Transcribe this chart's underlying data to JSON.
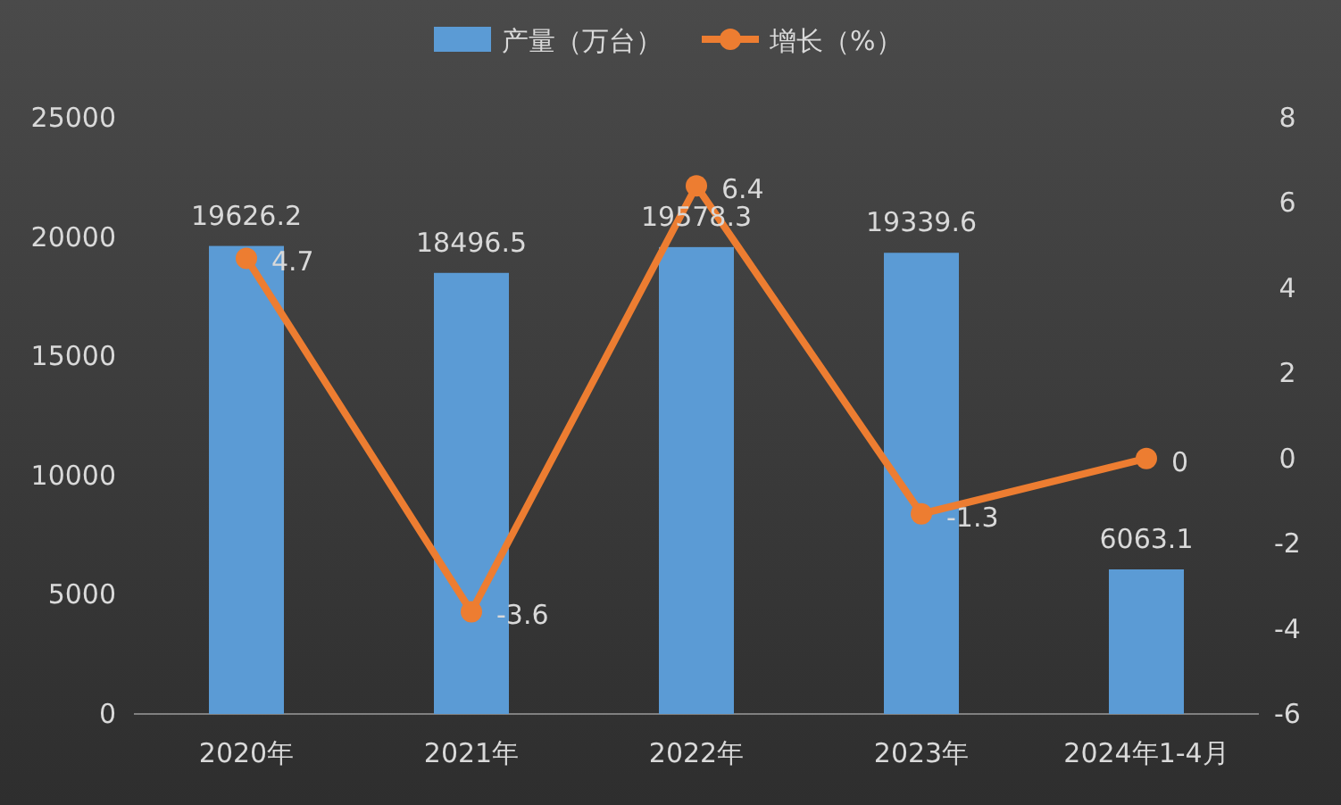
{
  "chart_data": {
    "type": "bar",
    "categories": [
      "2020年",
      "2021年",
      "2022年",
      "2023年",
      "2024年1-4月"
    ],
    "series": [
      {
        "name": "产量（万台）",
        "color": "#5b9bd5",
        "values": [
          19626.2,
          18496.5,
          19578.3,
          19339.6,
          6063.1
        ]
      },
      {
        "name": "增长（%）",
        "type": "line",
        "axis": "y2",
        "color": "#ed7d31",
        "values": [
          4.7,
          -3.6,
          6.4,
          -1.3,
          0
        ]
      }
    ],
    "ylim": [
      0,
      25000
    ],
    "yticks": [
      0,
      5000,
      10000,
      15000,
      20000,
      25000
    ],
    "y2lim": [
      -6,
      8
    ],
    "y2ticks": [
      -6,
      -4,
      -2,
      0,
      2,
      4,
      6,
      8
    ],
    "legend": "top",
    "marker": "circle",
    "line_style": "solid",
    "data_labels": true,
    "grid": false
  }
}
